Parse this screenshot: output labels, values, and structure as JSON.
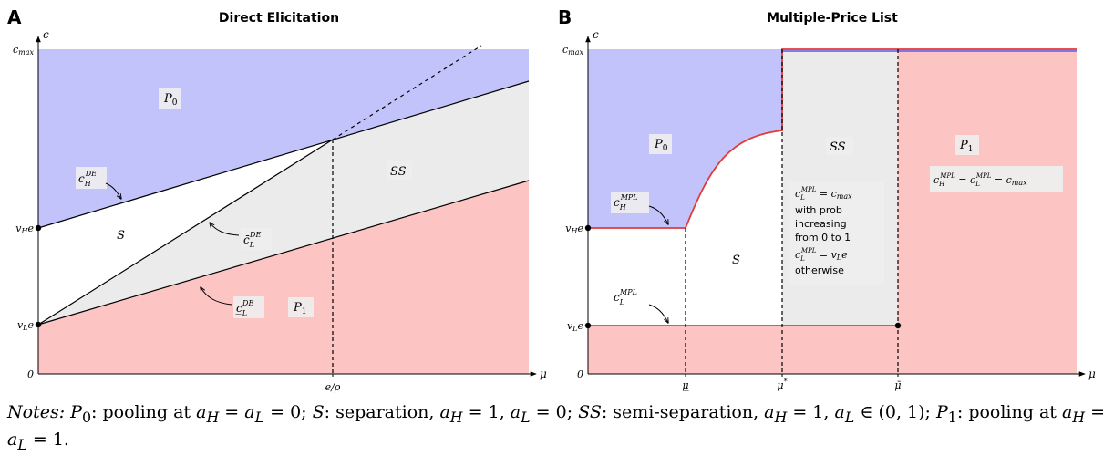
{
  "colors": {
    "blue_fill": "#c3c3fb",
    "red_fill": "#fdc4c4",
    "gray_fill": "#ebebeb",
    "red_line": "#e23a3a",
    "blue_line": "#5b5bef",
    "label_bg": "#eeeeee"
  },
  "panel_a": {
    "letter": "A",
    "title": "Direct Elicitation",
    "y_axis_label": "c",
    "x_axis_label": "μ",
    "y_ticks": [
      "c_max",
      "v_H e",
      "v_L e",
      "0"
    ],
    "x_ticks": [
      "e/ρ"
    ],
    "regions": {
      "p0": "P0",
      "s": "S",
      "ss": "SS",
      "p1": "P1"
    },
    "curve_labels": {
      "c_h": {
        "base": "c",
        "sub": "H",
        "sup": "DE"
      },
      "c_l_bar": {
        "base": "c̄",
        "sub": "L",
        "sup": "DE"
      },
      "c_l_under": {
        "base": "c̲",
        "sub": "L",
        "sup": "DE"
      }
    }
  },
  "panel_b": {
    "letter": "B",
    "title": "Multiple-Price List",
    "y_axis_label": "c",
    "x_axis_label": "μ",
    "y_ticks": [
      "c_max",
      "v_H e",
      "v_L e",
      "0"
    ],
    "x_ticks": [
      "μ̲",
      "μ*",
      "μ̄"
    ],
    "regions": {
      "p0": "P0",
      "s": "S",
      "ss": "SS",
      "p1": "P1"
    },
    "curve_labels": {
      "c_h": {
        "base": "c",
        "sub": "H",
        "sup": "MPL"
      },
      "c_l": {
        "base": "c",
        "sub": "L",
        "sup": "MPL"
      }
    },
    "ss_box": {
      "line1": "c_L^MPL = c_max",
      "line2": "with prob",
      "line3": "increasing",
      "line4": "from 0 to 1",
      "line5": "c_L^MPL = v_L e",
      "line6": "otherwise"
    },
    "p1_box": "c_H^MPL = c_L^MPL = c_max"
  },
  "notes": {
    "lead": "Notes:",
    "text": "P0: pooling at aH = aL = 0; S: separation, aH = 1, aL = 0; SS: semi-separation, aH = 1, aL ∈ (0, 1); P1: pooling at aH = aL = 1."
  }
}
